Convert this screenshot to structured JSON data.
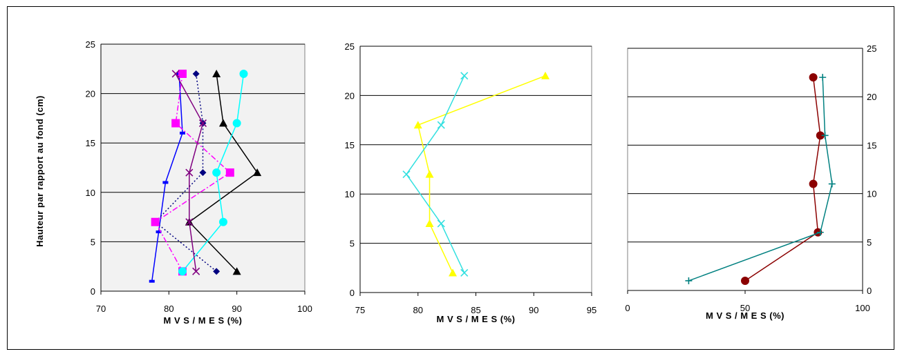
{
  "chart_data": [
    {
      "type": "line",
      "ylabel": "Hauteur par rapport au fond (cm)",
      "xlabel": "M V S / M E S (%)",
      "xlim": [
        70,
        100
      ],
      "ylim": [
        0,
        25
      ],
      "x_ticks": [
        "70",
        "80",
        "90",
        "100"
      ],
      "y_ticks": [
        "0",
        "5",
        "10",
        "15",
        "20",
        "25"
      ],
      "grid": "horizontal",
      "plot_background": "#f2f2f2",
      "series": [
        {
          "color": "#0000ff",
          "marker": "dash",
          "line": "solid",
          "points": [
            [
              77.5,
              1
            ],
            [
              78.5,
              6
            ],
            [
              79.5,
              11
            ],
            [
              82,
              16
            ],
            [
              81.5,
              22
            ]
          ]
        },
        {
          "color": "#000080",
          "marker": "diamond",
          "line": "dotted",
          "points": [
            [
              87,
              2
            ],
            [
              78,
              7
            ],
            [
              85,
              12
            ],
            [
              85,
              17
            ],
            [
              84,
              22
            ]
          ]
        },
        {
          "color": "#ff00ff",
          "marker": "square",
          "line": "dashdot",
          "points": [
            [
              82,
              2
            ],
            [
              78,
              7
            ],
            [
              89,
              12
            ],
            [
              81,
              17
            ],
            [
              82,
              22
            ]
          ]
        },
        {
          "color": "#000000",
          "marker": "triangle",
          "line": "solid",
          "points": [
            [
              90,
              2
            ],
            [
              83,
              7
            ],
            [
              93,
              12
            ],
            [
              88,
              17
            ],
            [
              87,
              22
            ]
          ]
        },
        {
          "color": "#00ffff",
          "marker": "circle",
          "line": "solid",
          "points": [
            [
              82,
              2
            ],
            [
              88,
              7
            ],
            [
              87,
              12
            ],
            [
              90,
              17
            ],
            [
              91,
              22
            ]
          ]
        },
        {
          "color": "#800080",
          "marker": "x",
          "line": "solid",
          "points": [
            [
              84,
              2
            ],
            [
              83,
              7
            ],
            [
              83,
              12
            ],
            [
              85,
              17
            ],
            [
              81,
              22
            ]
          ]
        }
      ]
    },
    {
      "type": "line",
      "xlabel": "M V S / M E S (%)",
      "xlim": [
        75,
        95
      ],
      "ylim": [
        0,
        25
      ],
      "x_ticks": [
        "75",
        "80",
        "85",
        "90",
        "95"
      ],
      "y_ticks": [
        "0",
        "5",
        "10",
        "15",
        "20",
        "25"
      ],
      "grid": "horizontal",
      "plot_background": "#ffffff",
      "series": [
        {
          "color": "#ffff00",
          "marker": "triangle",
          "line": "solid",
          "points": [
            [
              83,
              2
            ],
            [
              81,
              7
            ],
            [
              81,
              12
            ],
            [
              80,
              17
            ],
            [
              91,
              22
            ]
          ]
        },
        {
          "color": "#33e0e0",
          "marker": "x",
          "line": "solid",
          "points": [
            [
              84,
              2
            ],
            [
              82,
              7
            ],
            [
              79,
              12
            ],
            [
              82,
              17
            ],
            [
              84,
              22
            ]
          ]
        }
      ]
    },
    {
      "type": "line",
      "xlabel": "M V S / M E S (%)",
      "xlim": [
        0,
        100
      ],
      "ylim": [
        0,
        25
      ],
      "x_ticks": [
        "0",
        "50",
        "100"
      ],
      "y_ticks": [
        "0",
        "5",
        "10",
        "15",
        "20",
        "25"
      ],
      "grid": "horizontal",
      "plot_background": "#ffffff",
      "series": [
        {
          "color": "#8b0000",
          "marker": "circle",
          "line": "solid",
          "points": [
            [
              50,
              1
            ],
            [
              81,
              6
            ],
            [
              79,
              11
            ],
            [
              82,
              16
            ],
            [
              79,
              22
            ]
          ]
        },
        {
          "color": "#008080",
          "marker": "plus",
          "line": "solid",
          "points": [
            [
              26,
              1
            ],
            [
              82,
              6
            ],
            [
              87,
              11
            ],
            [
              84,
              16
            ],
            [
              83,
              22
            ]
          ]
        }
      ]
    }
  ]
}
